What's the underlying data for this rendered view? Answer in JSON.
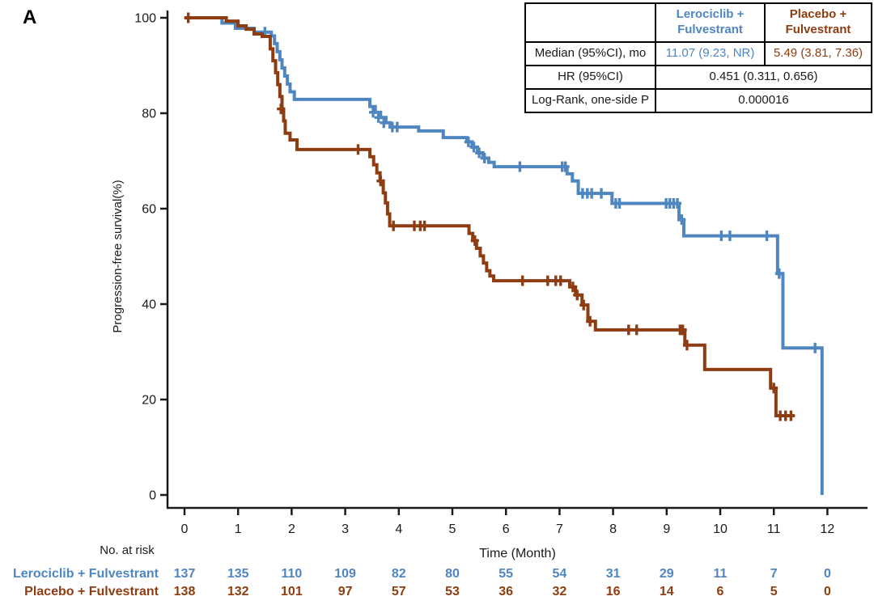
{
  "panel_label": "A",
  "colors": {
    "lerociclib": "#4f86c0",
    "placebo": "#8e3d12",
    "axis": "#1a1a1a",
    "table_border": "#000000"
  },
  "chart_data": {
    "type": "line",
    "subtype": "kaplan-meier-step",
    "xlabel": "Time (Month)",
    "ylabel": "Progression-free survival(%)",
    "xlim": [
      0,
      12
    ],
    "ylim": [
      0,
      100
    ],
    "xticks": [
      0,
      1,
      2,
      3,
      4,
      5,
      6,
      7,
      8,
      9,
      10,
      11,
      12
    ],
    "yticks": [
      0,
      20,
      40,
      60,
      80,
      100
    ],
    "grid": false,
    "legend_position": "none",
    "series": [
      {
        "name": "Lerociclib + Fulvestrant",
        "color": "#4f86c0",
        "median_months": 11.07,
        "steps": [
          [
            0,
            100
          ],
          [
            0.7,
            98.9
          ],
          [
            0.95,
            97.8
          ],
          [
            1.3,
            97.0
          ],
          [
            1.62,
            96.2
          ],
          [
            1.68,
            94.6
          ],
          [
            1.73,
            92.9
          ],
          [
            1.78,
            91.2
          ],
          [
            1.82,
            89.5
          ],
          [
            1.87,
            87.8
          ],
          [
            1.92,
            86.1
          ],
          [
            1.97,
            84.5
          ],
          [
            2.05,
            82.9
          ],
          [
            3.46,
            81.4
          ],
          [
            3.56,
            80.2
          ],
          [
            3.66,
            79.1
          ],
          [
            3.76,
            78.0
          ],
          [
            3.84,
            77.1
          ],
          [
            4.37,
            76.3
          ],
          [
            4.83,
            74.9
          ],
          [
            5.27,
            74.0
          ],
          [
            5.37,
            72.9
          ],
          [
            5.47,
            71.7
          ],
          [
            5.57,
            70.6
          ],
          [
            5.68,
            69.7
          ],
          [
            5.78,
            68.8
          ],
          [
            7.14,
            67.3
          ],
          [
            7.24,
            65.8
          ],
          [
            7.35,
            63.2
          ],
          [
            7.98,
            61.1
          ],
          [
            9.23,
            57.7
          ],
          [
            9.32,
            54.3
          ],
          [
            11.07,
            46.4
          ],
          [
            11.17,
            30.8
          ],
          [
            11.9,
            0
          ]
        ],
        "censors": [
          [
            1.5,
            97.0
          ],
          [
            3.52,
            80.2
          ],
          [
            3.62,
            79.1
          ],
          [
            3.72,
            78.0
          ],
          [
            3.88,
            77.1
          ],
          [
            3.97,
            77.1
          ],
          [
            5.3,
            74.0
          ],
          [
            5.4,
            72.9
          ],
          [
            5.5,
            71.7
          ],
          [
            5.6,
            70.6
          ],
          [
            6.26,
            68.8
          ],
          [
            7.05,
            68.8
          ],
          [
            7.11,
            68.8
          ],
          [
            7.43,
            63.2
          ],
          [
            7.52,
            63.2
          ],
          [
            7.6,
            63.2
          ],
          [
            7.78,
            63.2
          ],
          [
            8.05,
            61.1
          ],
          [
            8.12,
            61.1
          ],
          [
            8.99,
            61.1
          ],
          [
            9.06,
            61.1
          ],
          [
            9.13,
            61.1
          ],
          [
            9.2,
            61.1
          ],
          [
            9.28,
            57.7
          ],
          [
            10.02,
            54.3
          ],
          [
            10.18,
            54.3
          ],
          [
            10.87,
            54.3
          ],
          [
            11.1,
            46.4
          ],
          [
            11.77,
            30.8
          ]
        ]
      },
      {
        "name": "Placebo + Fulvestrant",
        "color": "#8e3d12",
        "median_months": 5.49,
        "steps": [
          [
            0,
            100
          ],
          [
            0.78,
            99.3
          ],
          [
            1.0,
            98.3
          ],
          [
            1.15,
            97.6
          ],
          [
            1.3,
            96.6
          ],
          [
            1.45,
            96.1
          ],
          [
            1.6,
            93.5
          ],
          [
            1.65,
            91.0
          ],
          [
            1.7,
            88.5
          ],
          [
            1.74,
            86.0
          ],
          [
            1.78,
            83.5
          ],
          [
            1.82,
            80.9
          ],
          [
            1.85,
            78.4
          ],
          [
            1.88,
            75.8
          ],
          [
            1.97,
            74.4
          ],
          [
            2.1,
            72.4
          ],
          [
            3.46,
            70.9
          ],
          [
            3.53,
            69.2
          ],
          [
            3.59,
            67.5
          ],
          [
            3.65,
            65.8
          ],
          [
            3.71,
            63.3
          ],
          [
            3.75,
            61.2
          ],
          [
            3.79,
            58.9
          ],
          [
            3.83,
            56.4
          ],
          [
            5.31,
            54.8
          ],
          [
            5.38,
            53.3
          ],
          [
            5.45,
            51.7
          ],
          [
            5.52,
            50.1
          ],
          [
            5.58,
            48.6
          ],
          [
            5.64,
            47.0
          ],
          [
            5.7,
            45.9
          ],
          [
            5.77,
            44.9
          ],
          [
            7.19,
            43.6
          ],
          [
            7.3,
            41.9
          ],
          [
            7.42,
            39.8
          ],
          [
            7.53,
            36.4
          ],
          [
            7.67,
            34.6
          ],
          [
            9.34,
            31.4
          ],
          [
            9.71,
            26.3
          ],
          [
            10.94,
            22.4
          ],
          [
            11.04,
            16.6
          ],
          [
            11.38,
            16.6
          ]
        ],
        "censors": [
          [
            0.07,
            100
          ],
          [
            1.8,
            80.9
          ],
          [
            3.24,
            72.4
          ],
          [
            3.66,
            65.8
          ],
          [
            3.9,
            56.4
          ],
          [
            4.29,
            56.4
          ],
          [
            4.4,
            56.4
          ],
          [
            4.48,
            56.4
          ],
          [
            5.42,
            53.3
          ],
          [
            6.31,
            44.9
          ],
          [
            6.78,
            44.9
          ],
          [
            6.93,
            44.9
          ],
          [
            7.02,
            44.9
          ],
          [
            7.25,
            43.6
          ],
          [
            7.33,
            41.9
          ],
          [
            7.45,
            39.8
          ],
          [
            7.57,
            36.4
          ],
          [
            8.29,
            34.6
          ],
          [
            8.44,
            34.6
          ],
          [
            9.25,
            34.6
          ],
          [
            9.3,
            34.6
          ],
          [
            9.38,
            31.4
          ],
          [
            11.0,
            22.4
          ],
          [
            11.12,
            16.6
          ],
          [
            11.22,
            16.6
          ],
          [
            11.32,
            16.6
          ]
        ]
      }
    ]
  },
  "stats_table": {
    "header": {
      "col1": "",
      "col2": "Lerociclib + Fulvestrant",
      "col3": "Placebo + Fulvestrant"
    },
    "median_row": {
      "label": "Median (95%CI), mo",
      "lerociclib": "11.07 (9.23, NR)",
      "placebo": "5.49 (3.81, 7.36)"
    },
    "hr_row": {
      "label": "HR (95%CI)",
      "value": "0.451 (0.311, 0.656)"
    },
    "logrank_row": {
      "label": "Log-Rank, one-side P",
      "value": "0.000016"
    }
  },
  "risk_table": {
    "title": "No. at risk",
    "time_points": [
      0,
      1,
      2,
      3,
      4,
      5,
      6,
      7,
      8,
      9,
      10,
      11,
      12
    ],
    "rows": [
      {
        "label": "Lerociclib + Fulvestrant",
        "color": "#4f86c0",
        "counts": [
          137,
          135,
          110,
          109,
          82,
          80,
          55,
          54,
          31,
          29,
          11,
          7,
          0
        ]
      },
      {
        "label": "Placebo + Fulvestrant",
        "color": "#8e3d12",
        "counts": [
          138,
          132,
          101,
          97,
          57,
          53,
          36,
          32,
          16,
          14,
          6,
          5,
          0
        ]
      }
    ]
  }
}
